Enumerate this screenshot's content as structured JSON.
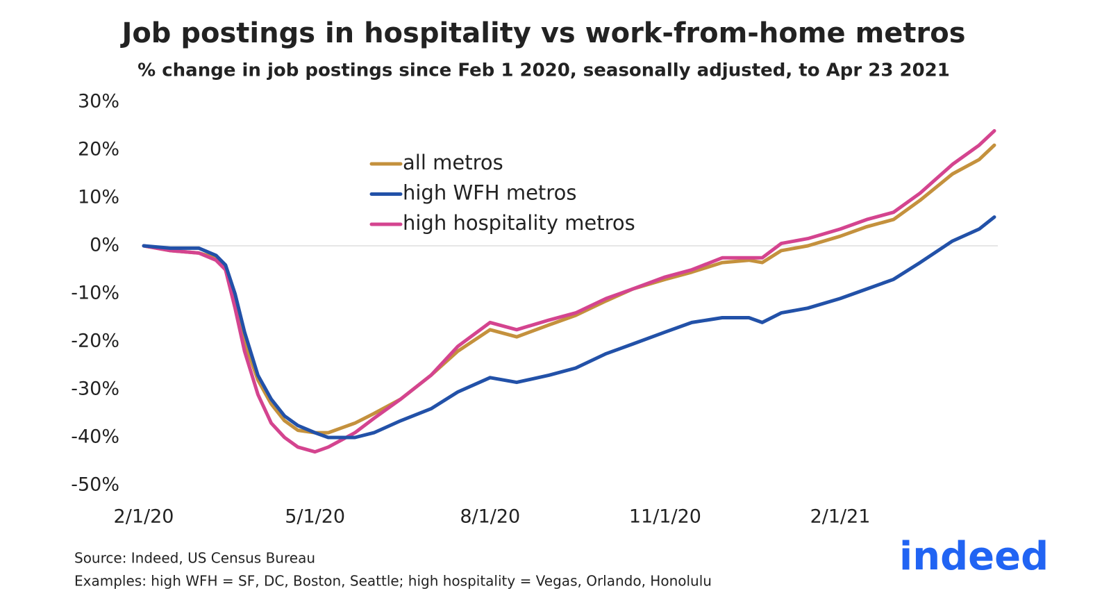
{
  "chart_data": {
    "type": "line",
    "title": "Job postings in hospitality vs work-from-home metros",
    "subtitle": "% change in job postings since Feb 1 2020, seasonally adjusted, to Apr 23 2021",
    "x": [
      "2020-02-01",
      "2020-02-15",
      "2020-03-01",
      "2020-03-10",
      "2020-03-15",
      "2020-03-20",
      "2020-03-25",
      "2020-04-01",
      "2020-04-08",
      "2020-04-15",
      "2020-04-22",
      "2020-05-01",
      "2020-05-08",
      "2020-05-15",
      "2020-05-22",
      "2020-06-01",
      "2020-06-15",
      "2020-07-01",
      "2020-07-15",
      "2020-08-01",
      "2020-08-15",
      "2020-09-01",
      "2020-09-15",
      "2020-10-01",
      "2020-10-15",
      "2020-11-01",
      "2020-11-15",
      "2020-12-01",
      "2020-12-15",
      "2020-12-22",
      "2021-01-01",
      "2021-01-15",
      "2021-02-01",
      "2021-02-15",
      "2021-03-01",
      "2021-03-15",
      "2021-04-01",
      "2021-04-15",
      "2021-04-23"
    ],
    "series": [
      {
        "name": "all metros",
        "color": "#c4913d",
        "values": [
          0,
          -1,
          -1.5,
          -2.5,
          -5,
          -12,
          -20,
          -28,
          -33,
          -36.5,
          -38.5,
          -39,
          -39,
          -38,
          -37,
          -35,
          -32,
          -27,
          -22,
          -17.5,
          -19,
          -16.5,
          -14.5,
          -11.5,
          -9,
          -7,
          -5.5,
          -3.5,
          -3,
          -3.5,
          -1,
          0,
          2,
          4,
          5.5,
          9.5,
          15,
          18,
          21
        ]
      },
      {
        "name": "high WFH metros",
        "color": "#2251a8",
        "values": [
          0,
          -0.5,
          -0.5,
          -2,
          -4,
          -10,
          -18,
          -27,
          -32,
          -35.5,
          -37.5,
          -39,
          -40,
          -40,
          -40,
          -39,
          -36.5,
          -34,
          -30.5,
          -27.5,
          -28.5,
          -27,
          -25.5,
          -22.5,
          -20.5,
          -18,
          -16,
          -15,
          -15,
          -16,
          -14,
          -13,
          -11,
          -9,
          -7,
          -3.5,
          1,
          3.5,
          6
        ]
      },
      {
        "name": "high hospitality metros",
        "color": "#d4448f",
        "values": [
          0,
          -1,
          -1.5,
          -3,
          -5,
          -13,
          -22,
          -31,
          -37,
          -40,
          -42,
          -43,
          -42,
          -40.5,
          -39,
          -36,
          -32,
          -27,
          -21,
          -16,
          -17.5,
          -15.5,
          -14,
          -11,
          -9,
          -6.5,
          -5,
          -2.5,
          -2.5,
          -2.5,
          0.5,
          1.5,
          3.5,
          5.5,
          7,
          11,
          17,
          21,
          24
        ]
      }
    ],
    "xlim": [
      "2020-02-01",
      "2021-04-23"
    ],
    "xticks": [
      {
        "value": "2020-02-01",
        "label": "2/1/20"
      },
      {
        "value": "2020-05-01",
        "label": "5/1/20"
      },
      {
        "value": "2020-08-01",
        "label": "8/1/20"
      },
      {
        "value": "2020-11-01",
        "label": "11/1/20"
      },
      {
        "value": "2021-02-01",
        "label": "2/1/21"
      }
    ],
    "ylim": [
      -50,
      30
    ],
    "yticks": [
      {
        "value": 30,
        "label": "30%"
      },
      {
        "value": 20,
        "label": "20%"
      },
      {
        "value": 10,
        "label": "10%"
      },
      {
        "value": 0,
        "label": "0%"
      },
      {
        "value": -10,
        "label": "-10%"
      },
      {
        "value": -20,
        "label": "-20%"
      },
      {
        "value": -30,
        "label": "-30%"
      },
      {
        "value": -40,
        "label": "-40%"
      },
      {
        "value": -50,
        "label": "-50%"
      }
    ],
    "zero_line": true,
    "legend": "upper center",
    "source": "Source: Indeed, US Census Bureau",
    "note": "Examples: high WFH = SF, DC, Boston, Seattle; high hospitality = Vegas, Orlando, Honolulu",
    "logo": "indeed"
  }
}
